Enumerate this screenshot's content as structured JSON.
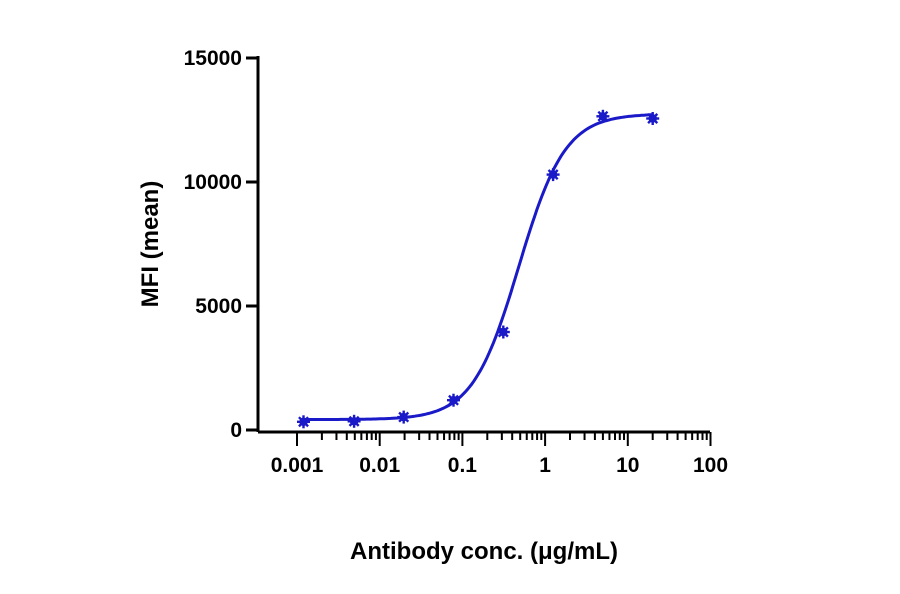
{
  "chart_data": {
    "type": "scatter",
    "title": "",
    "xlabel": "Antibody conc. (μg/mL)",
    "ylabel": "MFI (mean)",
    "xscale": "log",
    "xlim": [
      0.001,
      100
    ],
    "ylim": [
      0,
      15000
    ],
    "xticks": [
      0.001,
      0.01,
      0.1,
      1,
      10,
      100
    ],
    "xtick_labels": [
      "0.001",
      "0.01",
      "0.1",
      "1",
      "10",
      "100"
    ],
    "yticks": [
      0,
      5000,
      10000,
      15000
    ],
    "ytick_labels": [
      "0",
      "5000",
      "10000",
      "15000"
    ],
    "grid": false,
    "color": "#1a1ac8",
    "series": [
      {
        "points": [
          {
            "x": 0.0012,
            "y": 330
          },
          {
            "x": 0.0049,
            "y": 350
          },
          {
            "x": 0.0195,
            "y": 520
          },
          {
            "x": 0.078,
            "y": 1200
          },
          {
            "x": 0.3125,
            "y": 3950
          },
          {
            "x": 1.25,
            "y": 10300
          },
          {
            "x": 5,
            "y": 12650
          },
          {
            "x": 20,
            "y": 12560
          }
        ],
        "fit": {
          "model": "4PL",
          "bottom": 420,
          "top": 12750,
          "ec50": 0.48,
          "hill": 1.55,
          "x_range": [
            0.0012,
            20
          ]
        }
      }
    ]
  }
}
